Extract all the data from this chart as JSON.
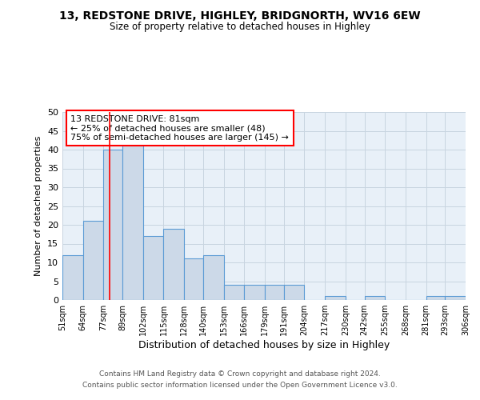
{
  "title": "13, REDSTONE DRIVE, HIGHLEY, BRIDGNORTH, WV16 6EW",
  "subtitle": "Size of property relative to detached houses in Highley",
  "xlabel": "Distribution of detached houses by size in Highley",
  "ylabel": "Number of detached properties",
  "bin_edges": [
    51,
    64,
    77,
    89,
    102,
    115,
    128,
    140,
    153,
    166,
    179,
    191,
    204,
    217,
    230,
    242,
    255,
    268,
    281,
    293,
    306
  ],
  "counts": [
    12,
    21,
    40,
    42,
    17,
    19,
    11,
    12,
    4,
    4,
    4,
    4,
    0,
    1,
    0,
    1,
    0,
    0,
    1,
    1
  ],
  "bar_color": "#ccd9e8",
  "bar_edge_color": "#5b9bd5",
  "grid_color": "#c8d4e0",
  "background_color": "#e8f0f8",
  "red_line_x": 81,
  "annotation_lines": [
    "13 REDSTONE DRIVE: 81sqm",
    "← 25% of detached houses are smaller (48)",
    "75% of semi-detached houses are larger (145) →"
  ],
  "footer_line1": "Contains HM Land Registry data © Crown copyright and database right 2024.",
  "footer_line2": "Contains public sector information licensed under the Open Government Licence v3.0.",
  "ylim": [
    0,
    50
  ],
  "yticks": [
    0,
    5,
    10,
    15,
    20,
    25,
    30,
    35,
    40,
    45,
    50
  ]
}
